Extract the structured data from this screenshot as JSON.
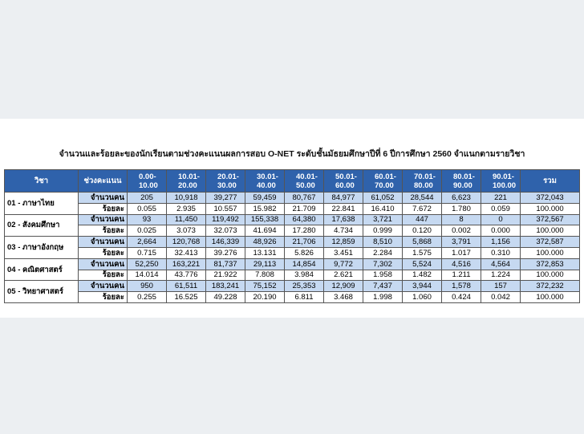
{
  "title": "จำนวนและร้อยละของนักเรียนตามช่วงคะแนนผลการสอบ O-NET ระดับชั้นมัธยมศึกษาปีที่ 6 ปีการศึกษา 2560 จำแนกตามรายวิชา",
  "table": {
    "header": [
      "วิชา",
      "ช่วงคะแนน",
      "0.00-10.00",
      "10.01-20.00",
      "20.01-30.00",
      "30.01-40.00",
      "40.01-50.00",
      "50.01-60.00",
      "60.01-70.00",
      "70.01-80.00",
      "80.01-90.00",
      "90.01-100.00",
      "รวม"
    ],
    "subjects": [
      {
        "subject": "01 - ภาษาไทย",
        "rows": [
          {
            "label": "จำนวนคน",
            "values": [
              "205",
              "10,918",
              "39,277",
              "59,459",
              "80,767",
              "84,977",
              "61,052",
              "28,544",
              "6,623",
              "221",
              "372,043"
            ]
          },
          {
            "label": "ร้อยละ",
            "values": [
              "0.055",
              "2.935",
              "10.557",
              "15.982",
              "21.709",
              "22.841",
              "16.410",
              "7.672",
              "1.780",
              "0.059",
              "100.000"
            ]
          }
        ]
      },
      {
        "subject": "02 - สังคมศึกษา",
        "rows": [
          {
            "label": "จำนวนคน",
            "values": [
              "93",
              "11,450",
              "119,492",
              "155,338",
              "64,380",
              "17,638",
              "3,721",
              "447",
              "8",
              "0",
              "372,567"
            ]
          },
          {
            "label": "ร้อยละ",
            "values": [
              "0.025",
              "3.073",
              "32.073",
              "41.694",
              "17.280",
              "4.734",
              "0.999",
              "0.120",
              "0.002",
              "0.000",
              "100.000"
            ]
          }
        ]
      },
      {
        "subject": "03 - ภาษาอังกฤษ",
        "rows": [
          {
            "label": "จำนวนคน",
            "values": [
              "2,664",
              "120,768",
              "146,339",
              "48,926",
              "21,706",
              "12,859",
              "8,510",
              "5,868",
              "3,791",
              "1,156",
              "372,587"
            ]
          },
          {
            "label": "ร้อยละ",
            "values": [
              "0.715",
              "32.413",
              "39.276",
              "13.131",
              "5.826",
              "3.451",
              "2.284",
              "1.575",
              "1.017",
              "0.310",
              "100.000"
            ]
          }
        ]
      },
      {
        "subject": "04 - คณิตศาสตร์",
        "rows": [
          {
            "label": "จำนวนคน",
            "values": [
              "52,250",
              "163,221",
              "81,737",
              "29,113",
              "14,854",
              "9,772",
              "7,302",
              "5,524",
              "4,516",
              "4,564",
              "372,853"
            ]
          },
          {
            "label": "ร้อยละ",
            "values": [
              "14.014",
              "43.776",
              "21.922",
              "7.808",
              "3.984",
              "2.621",
              "1.958",
              "1.482",
              "1.211",
              "1.224",
              "100.000"
            ]
          }
        ]
      },
      {
        "subject": "05 - วิทยาศาสตร์",
        "rows": [
          {
            "label": "จำนวนคน",
            "values": [
              "950",
              "61,511",
              "183,241",
              "75,152",
              "25,353",
              "12,909",
              "7,437",
              "3,944",
              "1,578",
              "157",
              "372,232"
            ]
          },
          {
            "label": "ร้อยละ",
            "values": [
              "0.255",
              "16.525",
              "49.228",
              "20.190",
              "6.811",
              "3.468",
              "1.998",
              "1.060",
              "0.424",
              "0.042",
              "100.000"
            ]
          }
        ]
      }
    ]
  }
}
